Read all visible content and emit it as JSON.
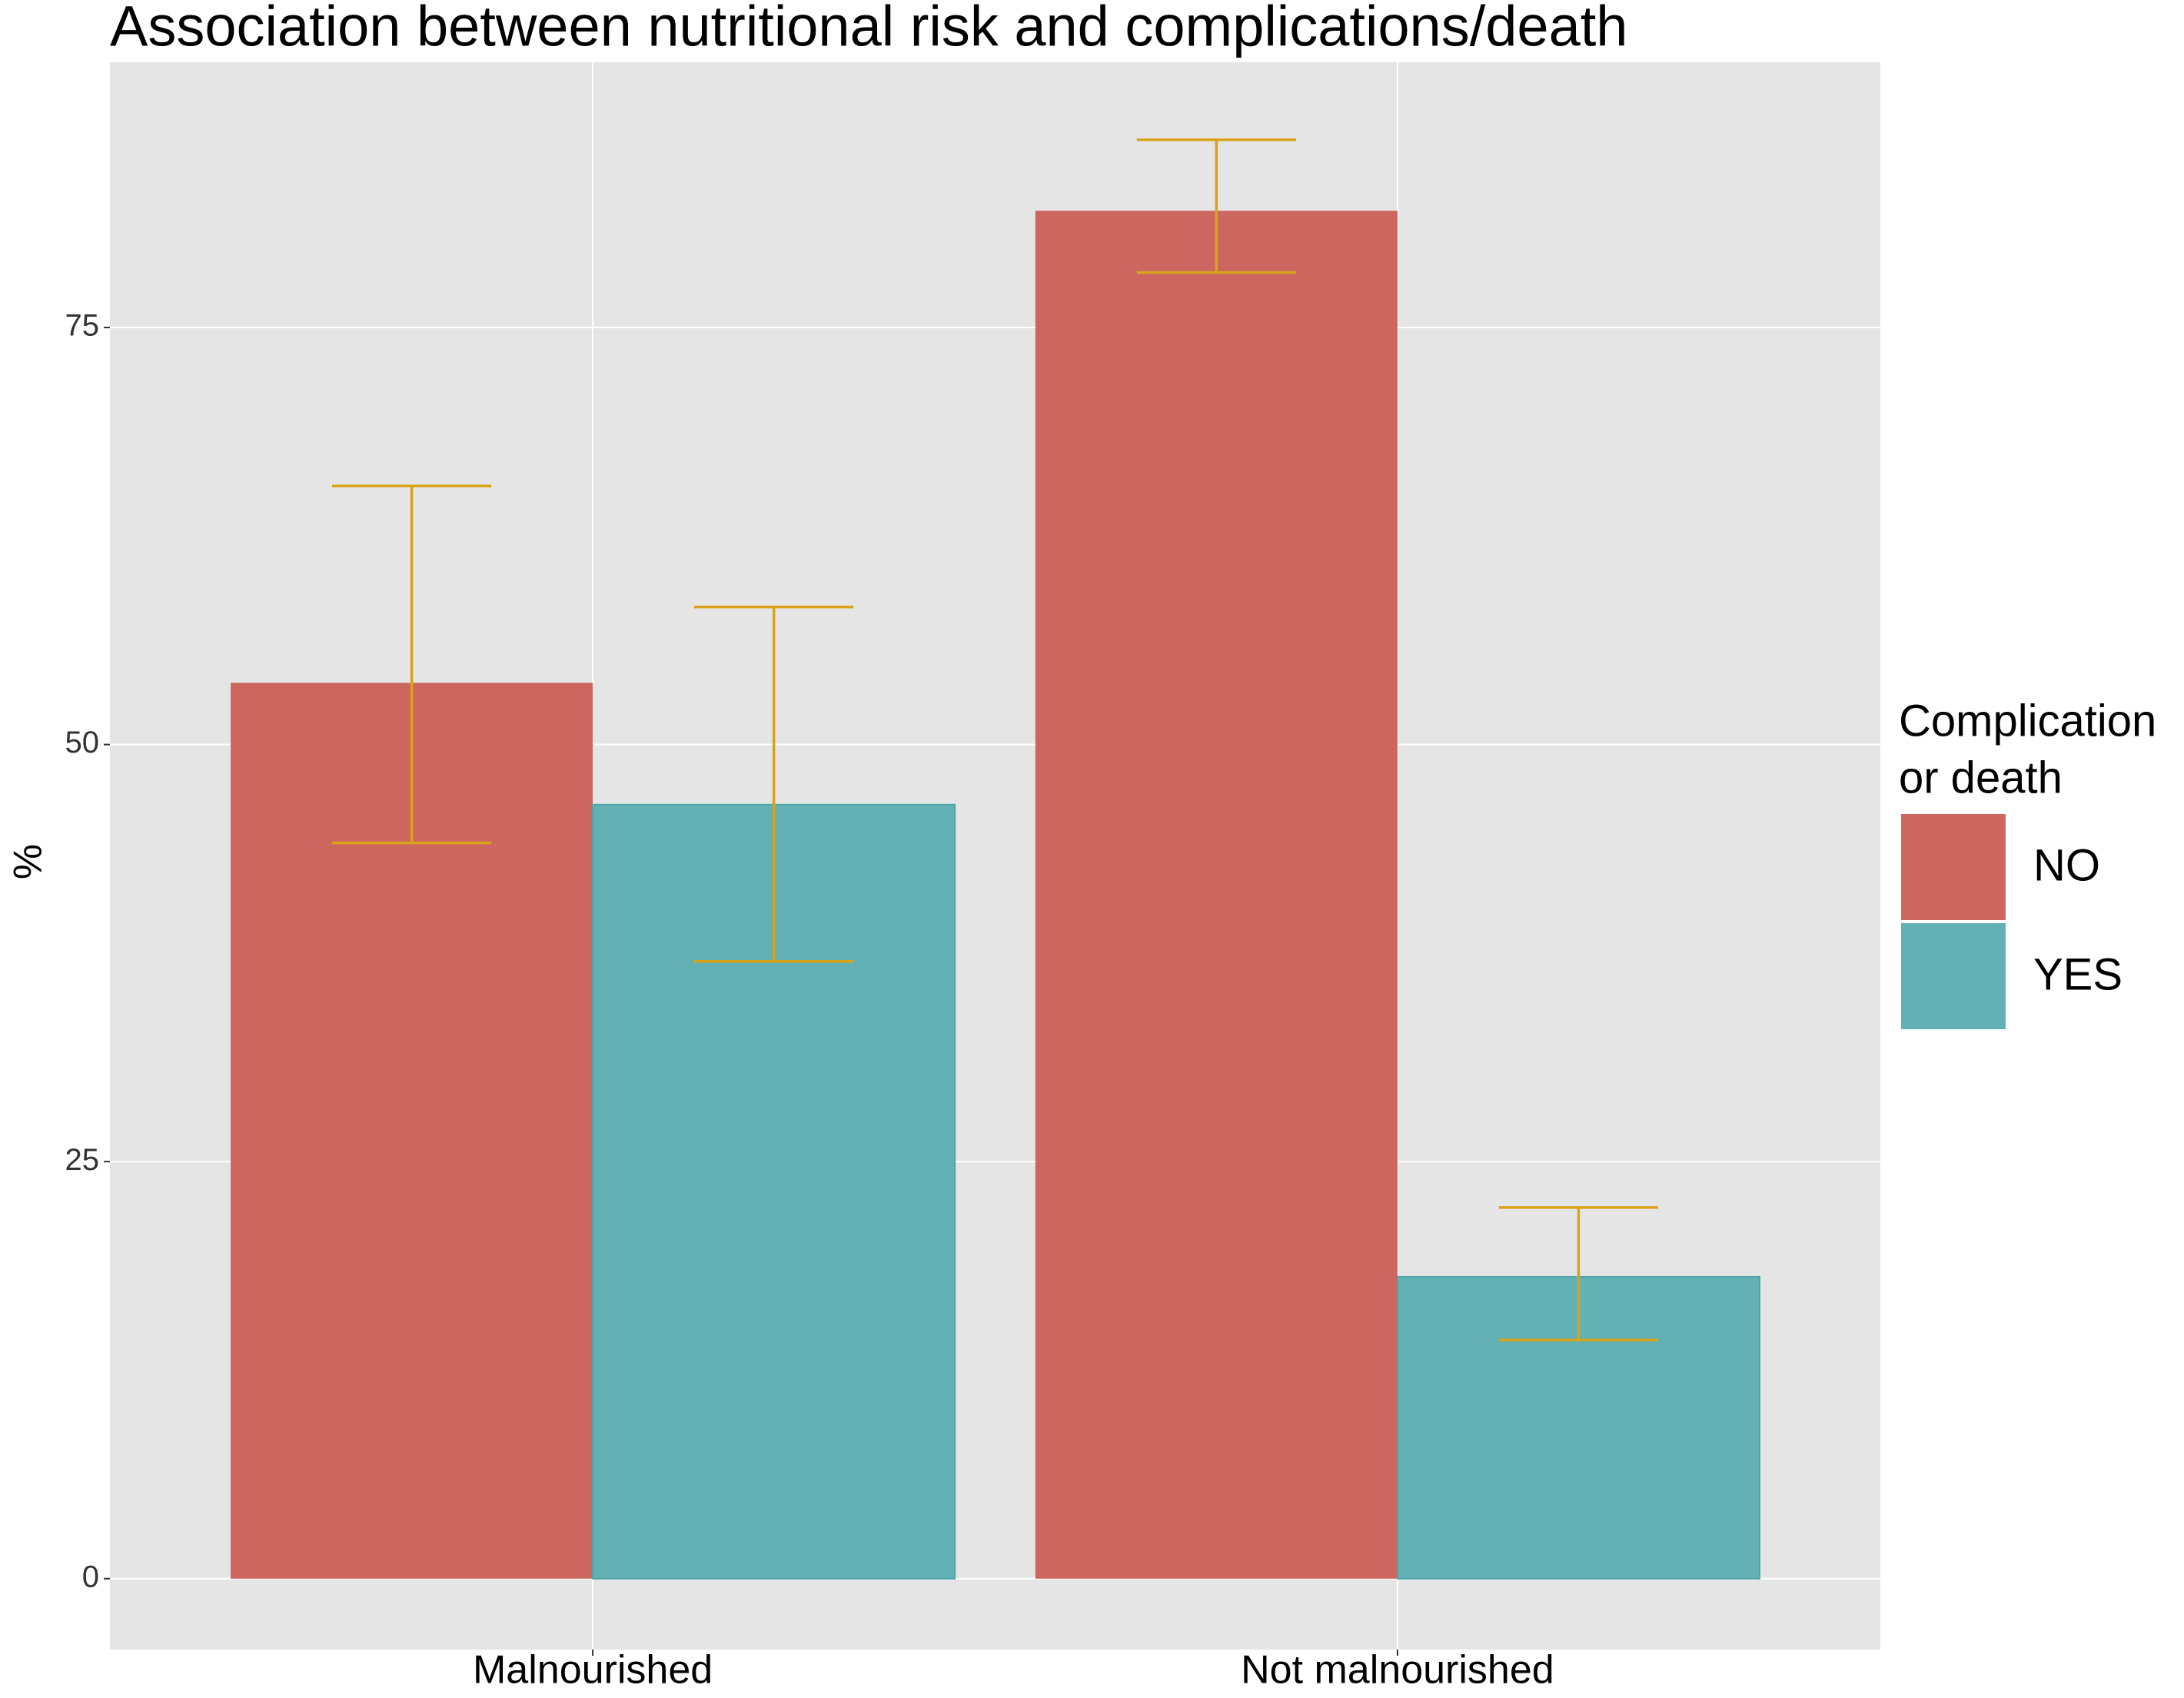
{
  "chart_data": {
    "type": "bar",
    "title": "Association between nutritional risk and complications/death",
    "y_label": "%",
    "categories": [
      "Malnourished",
      "Not malnourished"
    ],
    "legend_title": [
      "Complication",
      "or death"
    ],
    "series": [
      {
        "name": "NO",
        "color": "#cd665f",
        "values": [
          53.7,
          82
        ],
        "lower": [
          44.1,
          78.3
        ],
        "upper": [
          65.5,
          86.25
        ]
      },
      {
        "name": "YES",
        "color": "#63b0b5",
        "values": [
          46.4,
          18.1
        ],
        "lower": [
          37,
          14.3
        ],
        "upper": [
          58.25,
          22.25
        ]
      }
    ],
    "error_color": "#d9a21b",
    "ylim": [
      -4.25,
      90.9
    ],
    "yticks": [
      0,
      25,
      50,
      75
    ],
    "grid": true,
    "legend": "right"
  }
}
